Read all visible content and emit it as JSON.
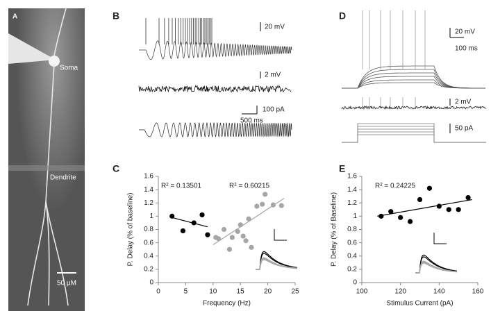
{
  "panel_letters": [
    "A",
    "B",
    "C",
    "D",
    "E"
  ],
  "panel_a": {
    "labels": [
      "Soma",
      "Dendrite",
      "50 µM"
    ]
  },
  "panel_b": {
    "scale_labels": [
      "20 mV",
      "2 mV",
      "100 pA",
      "500 ms"
    ]
  },
  "panel_d": {
    "scale_labels": [
      "20 mV",
      "100 ms",
      "2 mV",
      "50 pA"
    ]
  },
  "chart_data": [
    {
      "type": "scatter",
      "x_label": "Frequency (Hz)",
      "y_label": "P. Delay (% of baseline)",
      "xlim": [
        0,
        25
      ],
      "xticks": [
        0,
        5,
        10,
        15,
        20,
        25
      ],
      "ylim": [
        0,
        1.6
      ],
      "yticks": [
        0,
        0.2,
        0.4,
        0.6,
        0.8,
        1,
        1.2,
        1.4,
        1.6
      ],
      "series": [
        {
          "color": "#000000",
          "x": [
            2.5,
            4.5,
            6.5,
            8,
            9
          ],
          "values": [
            1.0,
            0.78,
            0.9,
            1.02,
            0.72
          ]
        },
        {
          "color": "#a6a6a6",
          "x": [
            10.5,
            11,
            12,
            13,
            13.5,
            14.5,
            15,
            15.5,
            16,
            16.5,
            17,
            18,
            19,
            19.5,
            21,
            22.5
          ],
          "values": [
            0.68,
            0.66,
            0.8,
            0.5,
            0.68,
            0.77,
            0.87,
            0.7,
            0.63,
            0.96,
            0.53,
            1.15,
            1.18,
            1.33,
            1.17,
            1.16
          ]
        }
      ],
      "trendlines": [
        {
          "color": "#000000",
          "x": [
            2.5,
            9
          ],
          "y": [
            0.98,
            0.84
          ]
        },
        {
          "color": "#a6a6a6",
          "x": [
            10,
            23
          ],
          "y": [
            0.57,
            1.27
          ]
        }
      ],
      "annotations": [
        {
          "text": "R² = 0.13501",
          "color": "#000000"
        },
        {
          "text": "R² = 0.60215",
          "color": "#a6a6a6"
        }
      ]
    },
    {
      "type": "scatter",
      "x_label": "Stimulus Current (pA)",
      "y_label": "P. Delay (% of Baseline)",
      "xlim": [
        100,
        160
      ],
      "xticks": [
        100,
        120,
        140,
        160
      ],
      "ylim": [
        0,
        1.6
      ],
      "yticks": [
        0,
        0.2,
        0.4,
        0.6,
        0.8,
        1,
        1.2,
        1.4,
        1.6
      ],
      "series": [
        {
          "color": "#000000",
          "x": [
            110,
            115,
            120,
            125,
            130,
            135,
            140,
            145,
            150,
            155
          ],
          "values": [
            1.0,
            1.07,
            0.98,
            0.92,
            1.25,
            1.42,
            1.15,
            1.1,
            1.1,
            1.28
          ]
        }
      ],
      "trendlines": [
        {
          "color": "#000000",
          "x": [
            108,
            157
          ],
          "y": [
            1.0,
            1.25
          ]
        }
      ],
      "annotations": [
        {
          "text": "R² = 0.24225",
          "color": "#000000"
        }
      ]
    }
  ]
}
